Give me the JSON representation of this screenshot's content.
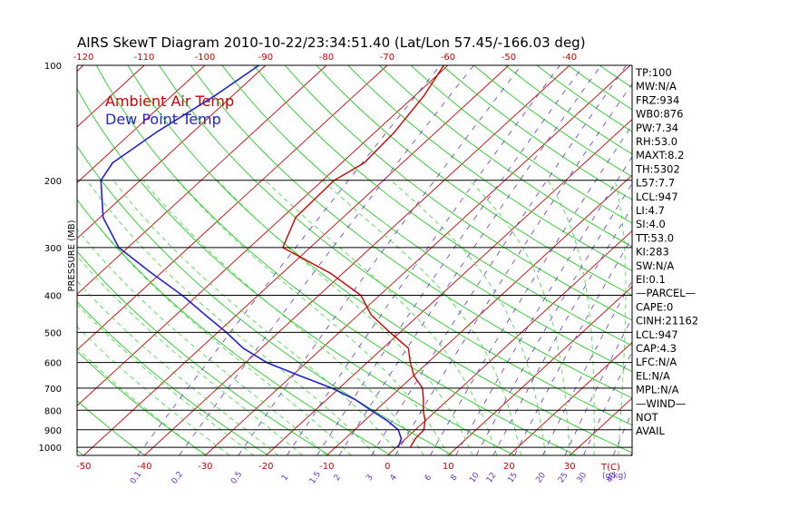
{
  "chart_data": {
    "type": "line",
    "title": "AIRS SkewT Diagram 2010-10-22/23:34:51.40 (Lat/Lon 57.45/-166.03 deg)",
    "ylabel": "PRESSURE (MB)",
    "xlabel": "T(C)",
    "mixing_ratio_unit": "(g/kg)",
    "pressure_ticks": [
      100,
      200,
      300,
      400,
      500,
      600,
      700,
      800,
      900,
      1000
    ],
    "ylim": [
      1050,
      100
    ],
    "top_temp_ticks": [
      -120,
      -110,
      -100,
      -90,
      -80,
      -70,
      -60,
      -50,
      -40
    ],
    "bottom_temp_ticks": [
      -50,
      -40,
      -30,
      -20,
      -10,
      0,
      10,
      20,
      30
    ],
    "mixing_ratio_labels": [
      "0.1",
      "0.2",
      "0.5",
      "1",
      "1.5",
      "2",
      "3",
      "4",
      "6",
      "8",
      "10",
      "12",
      "15",
      "20",
      "25",
      "30",
      "40"
    ],
    "legend": [
      "Ambient Air Temp",
      "Dew Point Temp"
    ],
    "series": [
      {
        "name": "Ambient Air Temp",
        "color": "#cc0000",
        "pressure": [
          100,
          120,
          150,
          180,
          200,
          250,
          300,
          350,
          400,
          450,
          500,
          550,
          600,
          650,
          700,
          750,
          800,
          850,
          900,
          950,
          1000
        ],
        "temperature": [
          -60.7,
          -58.5,
          -56.8,
          -56.3,
          -58.1,
          -57.8,
          -54.5,
          -42.1,
          -33.1,
          -27.9,
          -21.7,
          -15.8,
          -12.9,
          -9.9,
          -6.3,
          -4.1,
          -2.2,
          -0.1,
          1.4,
          1.6,
          2.3
        ]
      },
      {
        "name": "Dew Point Temp",
        "color": "#2222cc",
        "pressure": [
          100,
          120,
          150,
          180,
          200,
          250,
          300,
          350,
          400,
          450,
          500,
          550,
          600,
          650,
          700,
          750,
          800,
          850,
          900,
          950,
          1000
        ],
        "temperature": [
          -91.1,
          -92.9,
          -96.0,
          -97.7,
          -96.5,
          -89.5,
          -81.5,
          -71.5,
          -62.5,
          -55.2,
          -48.6,
          -43.0,
          -36.5,
          -28.7,
          -21.2,
          -15.3,
          -10.8,
          -6.4,
          -2.8,
          -0.7,
          0.3
        ]
      }
    ]
  },
  "indices": [
    "TP:100",
    "MW:N/A",
    "FRZ:934",
    "WB0:876",
    "PW:7.34",
    "RH:53.0",
    "MAXT:8.2",
    "TH:5302",
    "L57:7.7",
    "LCL:947",
    "LI:4.7",
    "SI:4.0",
    "TT:53.0",
    "KI:283",
    "SW:N/A",
    "EI:0.1",
    "—PARCEL—",
    "CAPE:0",
    "CINH:21162",
    "LCL:947",
    "CAP:4.3",
    "LFC:N/A",
    "EL:N/A",
    "MPL:N/A",
    "—WIND—",
    "NOT",
    "AVAIL"
  ]
}
